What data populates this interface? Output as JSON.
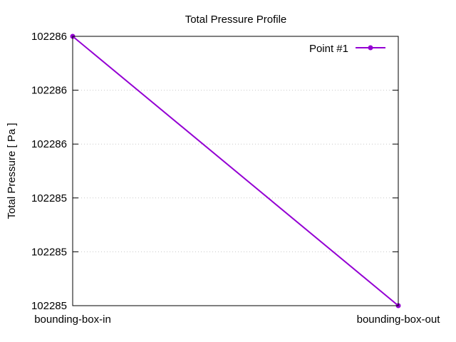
{
  "chart_data": {
    "type": "line",
    "title": "Total Pressure Profile",
    "xlabel": "",
    "ylabel": "Total Pressure [ Pa ]",
    "categories": [
      "bounding-box-in",
      "bounding-box-out"
    ],
    "series": [
      {
        "name": "Point #1",
        "values": [
          102285.6,
          102285.1
        ],
        "color": "#9400d3"
      }
    ],
    "ylim": [
      102285.1,
      102285.6
    ],
    "yticks": [
      {
        "value": 102285.1,
        "label": "102285"
      },
      {
        "value": 102285.2,
        "label": "102285"
      },
      {
        "value": 102285.3,
        "label": "102285"
      },
      {
        "value": 102285.4,
        "label": "102286"
      },
      {
        "value": 102285.5,
        "label": "102286"
      },
      {
        "value": 102285.6,
        "label": "102286"
      }
    ],
    "grid": true,
    "legend_position": "top-right"
  }
}
